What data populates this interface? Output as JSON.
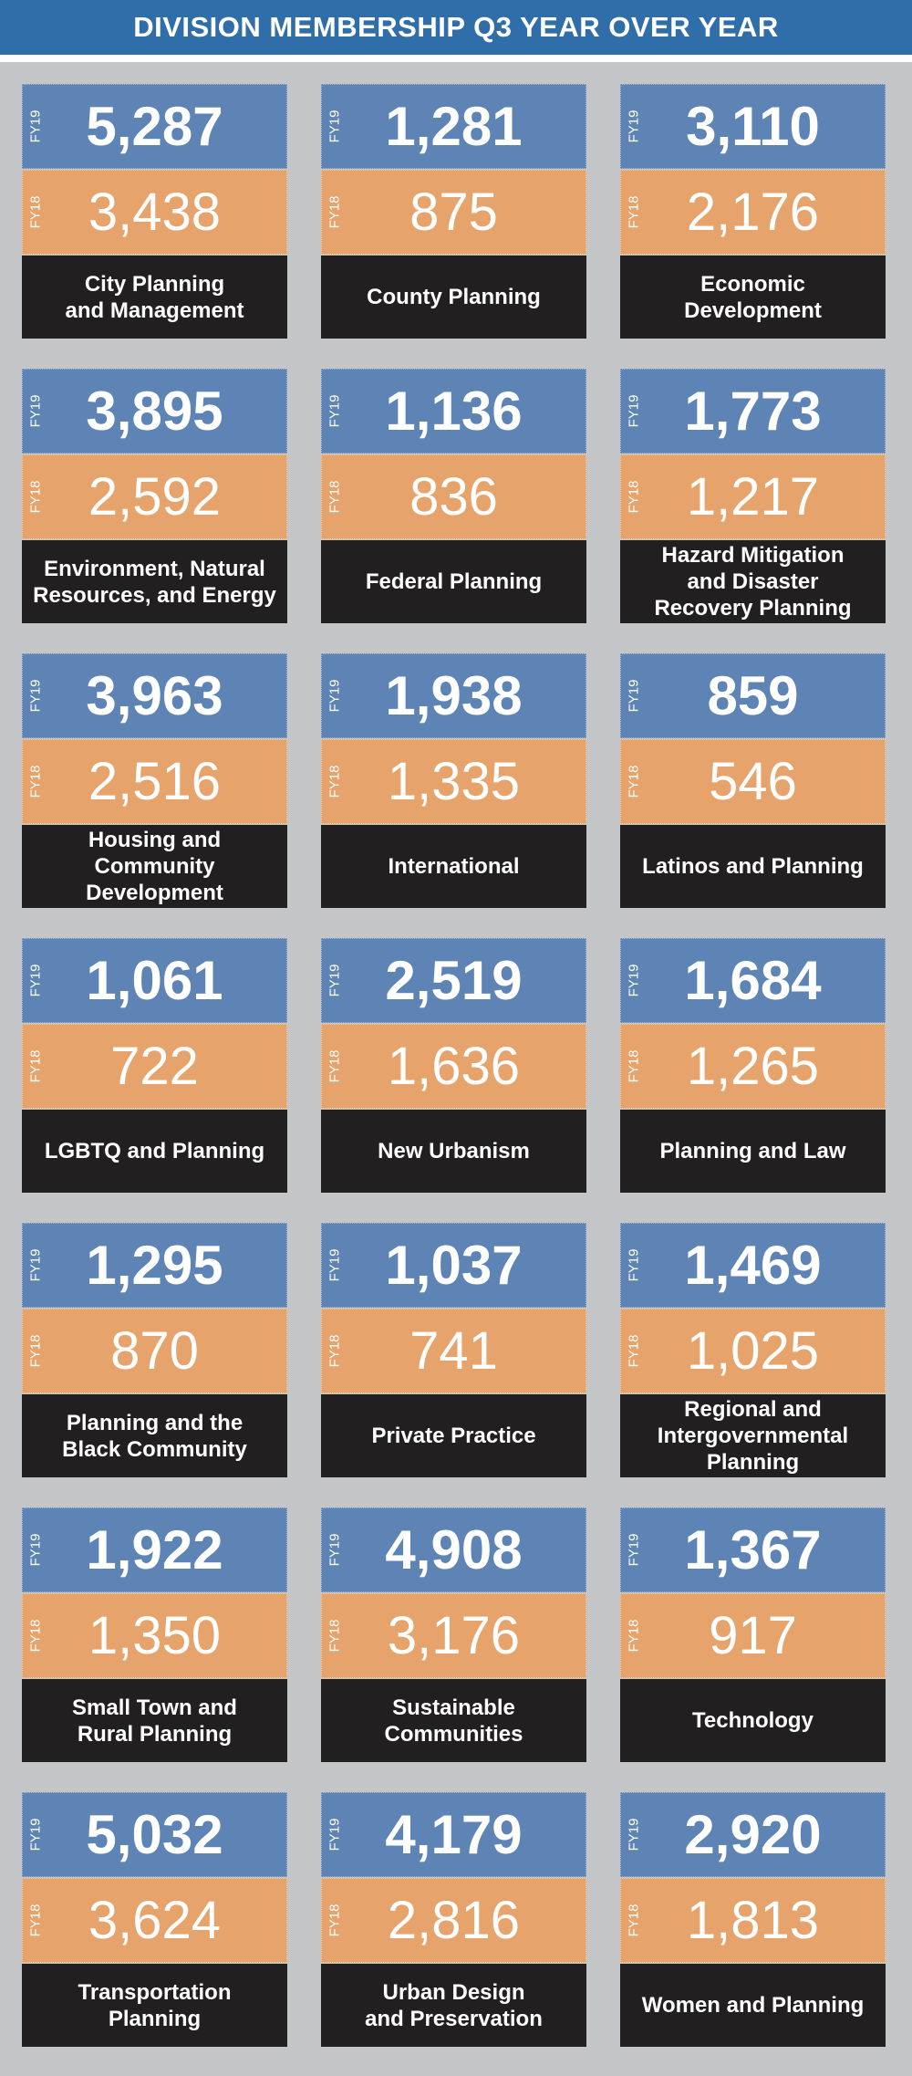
{
  "title": "DIVISION MEMBERSHIP Q3 YEAR OVER YEAR",
  "year_labels": {
    "current": "FY19",
    "previous": "FY18"
  },
  "colors": {
    "header": "#2f6ea8",
    "fy19": "#5d84b4",
    "fy18": "#e6a46c",
    "label": "#221f20",
    "background": "#c4c5c7"
  },
  "divisions": [
    {
      "name": "City Planning\nand Management",
      "fy19": "5,287",
      "fy18": "3,438"
    },
    {
      "name": "County Planning",
      "fy19": "1,281",
      "fy18": "875"
    },
    {
      "name": "Economic\nDevelopment",
      "fy19": "3,110",
      "fy18": "2,176"
    },
    {
      "name": "Environment, Natural\nResources, and Energy",
      "fy19": "3,895",
      "fy18": "2,592"
    },
    {
      "name": "Federal Planning",
      "fy19": "1,136",
      "fy18": "836"
    },
    {
      "name": "Hazard Mitigation\nand Disaster\nRecovery Planning",
      "fy19": "1,773",
      "fy18": "1,217"
    },
    {
      "name": "Housing and\nCommunity\nDevelopment",
      "fy19": "3,963",
      "fy18": "2,516"
    },
    {
      "name": "International",
      "fy19": "1,938",
      "fy18": "1,335"
    },
    {
      "name": "Latinos and Planning",
      "fy19": "859",
      "fy18": "546"
    },
    {
      "name": "LGBTQ and Planning",
      "fy19": "1,061",
      "fy18": "722"
    },
    {
      "name": "New Urbanism",
      "fy19": "2,519",
      "fy18": "1,636"
    },
    {
      "name": "Planning and Law",
      "fy19": "1,684",
      "fy18": "1,265"
    },
    {
      "name": "Planning and the\nBlack Community",
      "fy19": "1,295",
      "fy18": "870"
    },
    {
      "name": "Private Practice",
      "fy19": "1,037",
      "fy18": "741"
    },
    {
      "name": "Regional and\nIntergovernmental\nPlanning",
      "fy19": "1,469",
      "fy18": "1,025"
    },
    {
      "name": "Small Town and\nRural Planning",
      "fy19": "1,922",
      "fy18": "1,350"
    },
    {
      "name": "Sustainable\nCommunities",
      "fy19": "4,908",
      "fy18": "3,176"
    },
    {
      "name": "Technology",
      "fy19": "1,367",
      "fy18": "917"
    },
    {
      "name": "Transportation\nPlanning",
      "fy19": "5,032",
      "fy18": "3,624"
    },
    {
      "name": "Urban Design\nand Preservation",
      "fy19": "4,179",
      "fy18": "2,816"
    },
    {
      "name": "Women and Planning",
      "fy19": "2,920",
      "fy18": "1,813"
    }
  ]
}
